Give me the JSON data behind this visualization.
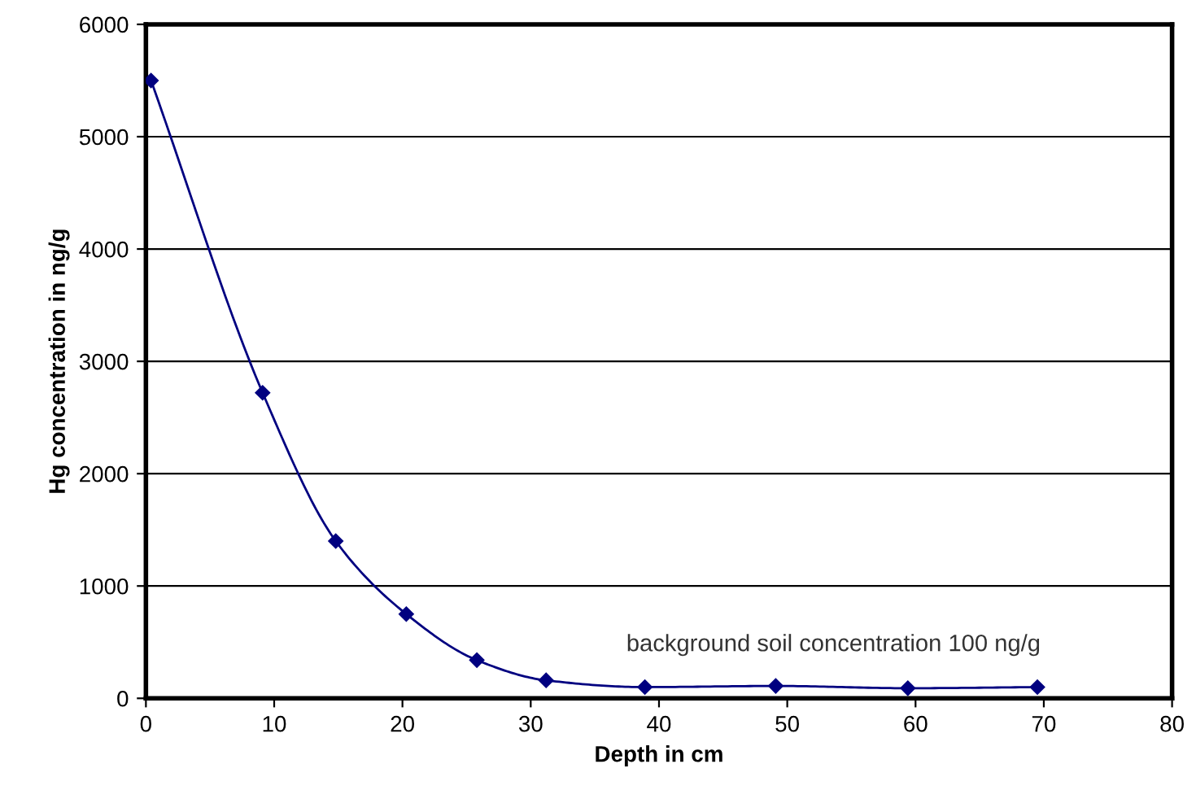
{
  "chart_data": {
    "type": "line",
    "xlabel": "Depth in cm",
    "ylabel": "Hg concentration in ng/g",
    "series": [
      {
        "color": "#000080",
        "x": [
          0.4,
          9.1,
          14.8,
          20.3,
          25.8,
          31.2,
          38.9,
          49.1,
          59.4,
          69.5
        ],
        "values": [
          5500,
          2720,
          1400,
          750,
          340,
          160,
          100,
          110,
          90,
          100
        ]
      }
    ],
    "xlim": [
      0,
      80
    ],
    "xticks": [
      0,
      10,
      20,
      30,
      40,
      50,
      60,
      70,
      80
    ],
    "ylim": [
      0,
      6000
    ],
    "yticks": [
      0,
      1000,
      2000,
      3000,
      4000,
      5000,
      6000
    ],
    "grid": "y",
    "marker": "diamond",
    "line_style": "solid",
    "legend": false,
    "annotations": [
      "background soil concentration 100 ng/g"
    ]
  }
}
